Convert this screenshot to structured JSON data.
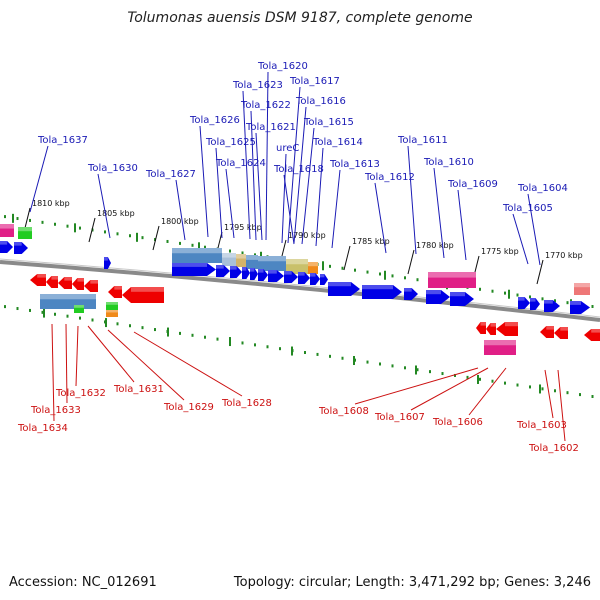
{
  "title": "Tolumonas auensis DSM 9187, complete genome",
  "footer": {
    "accession": "Accession: NC_012691",
    "summary": "Topology: circular; Length: 3,471,292 bp; Genes: 3,246"
  },
  "colors": {
    "forward_gene": "#0000e6",
    "reverse_gene": "#ee0000",
    "forward_label": "#1a1ab5",
    "reverse_label": "#cc1111",
    "backbone": "#8a8a8a",
    "tick": "#228822",
    "domain_blue": "#4d86c2",
    "domain_magenta": "#e01f86",
    "domain_green": "#22cc22",
    "domain_orange": "#f08a1a",
    "domain_salmon": "#ee7777"
  },
  "scale_labels": [
    "1810 kbp",
    "1805 kbp",
    "1800 kbp",
    "1795 kbp",
    "1790 kbp",
    "1785 kbp",
    "1780 kbp",
    "1775 kbp",
    "1770 kbp"
  ],
  "forward_genes": [
    "Tola_1637",
    "Tola_1630",
    "Tola_1627",
    "Tola_1626",
    "Tola_1625",
    "Tola_1624",
    "Tola_1623",
    "Tola_1622",
    "Tola_1620",
    "Tola_1621",
    "Tola_1617",
    "Tola_1616",
    "Tola_1615",
    "Tola_1614",
    "ureC",
    "Tola_1618",
    "Tola_1613",
    "Tola_1612",
    "Tola_1611",
    "Tola_1610",
    "Tola_1609",
    "Tola_1605",
    "Tola_1604"
  ],
  "reverse_genes": [
    "Tola_1634",
    "Tola_1633",
    "Tola_1632",
    "Tola_1631",
    "Tola_1629",
    "Tola_1628",
    "Tola_1608",
    "Tola_1607",
    "Tola_1606",
    "Tola_1603",
    "Tola_1602"
  ]
}
